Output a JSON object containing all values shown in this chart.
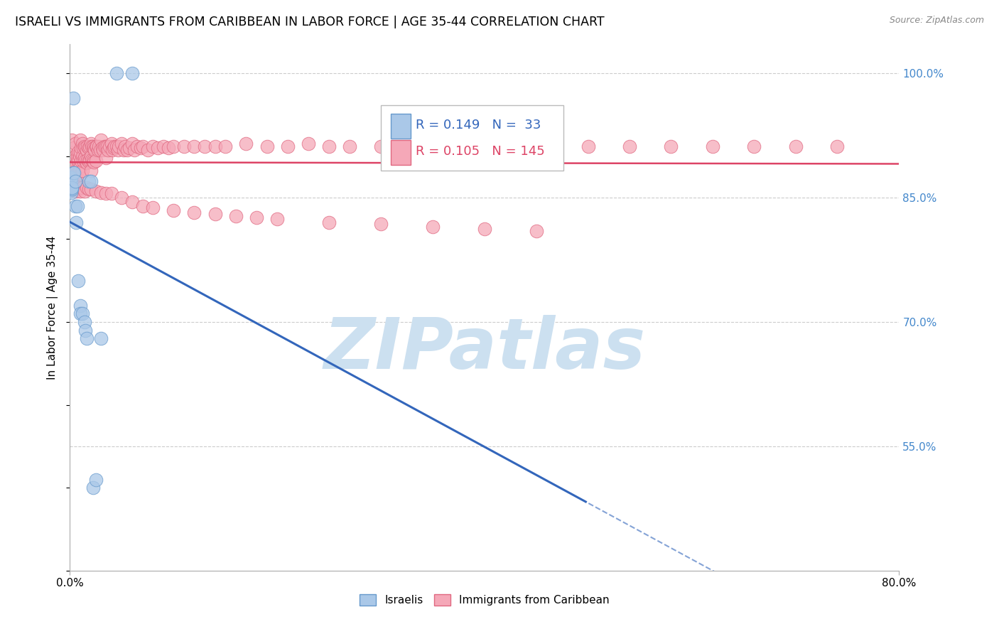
{
  "title": "ISRAELI VS IMMIGRANTS FROM CARIBBEAN IN LABOR FORCE | AGE 35-44 CORRELATION CHART",
  "source": "Source: ZipAtlas.com",
  "ylabel": "In Labor Force | Age 35-44",
  "x_min": 0.0,
  "x_max": 0.8,
  "y_min": 0.4,
  "y_max": 1.035,
  "y_ticks_right": [
    0.55,
    0.7,
    0.85,
    1.0
  ],
  "y_tick_labels_right": [
    "55.0%",
    "70.0%",
    "85.0%",
    "100.0%"
  ],
  "watermark": "ZIPatlas",
  "legend_r1": "R = 0.149",
  "legend_n1": "N =  33",
  "legend_r2": "R = 0.105",
  "legend_n2": "N = 145",
  "israeli_color": "#aac8e8",
  "caribbean_color": "#f5a8b8",
  "israeli_edge_color": "#6699cc",
  "caribbean_edge_color": "#e06880",
  "israeli_line_color": "#3366bb",
  "caribbean_line_color": "#dd4466",
  "background_color": "#ffffff",
  "grid_color": "#cccccc",
  "right_label_color": "#4488cc",
  "title_fontsize": 12.5,
  "label_fontsize": 11,
  "tick_fontsize": 11,
  "legend_fontsize": 13,
  "watermark_color": "#cce0f0",
  "watermark_fontsize": 72,
  "israeli_scatter_x": [
    0.0,
    0.0,
    0.0,
    0.0,
    0.0,
    0.001,
    0.001,
    0.001,
    0.001,
    0.001,
    0.002,
    0.002,
    0.003,
    0.003,
    0.004,
    0.005,
    0.005,
    0.006,
    0.007,
    0.008,
    0.01,
    0.01,
    0.012,
    0.014,
    0.015,
    0.016,
    0.018,
    0.02,
    0.022,
    0.025,
    0.03,
    0.045,
    0.06
  ],
  "israeli_scatter_y": [
    0.86,
    0.862,
    0.865,
    0.858,
    0.868,
    0.86,
    0.862,
    0.856,
    0.87,
    0.874,
    0.86,
    0.862,
    0.97,
    0.88,
    0.88,
    0.87,
    0.84,
    0.82,
    0.84,
    0.75,
    0.72,
    0.71,
    0.71,
    0.7,
    0.69,
    0.68,
    0.87,
    0.87,
    0.5,
    0.51,
    0.68,
    1.0,
    1.0
  ],
  "caribbean_scatter_x": [
    0.002,
    0.003,
    0.003,
    0.003,
    0.004,
    0.004,
    0.004,
    0.005,
    0.005,
    0.005,
    0.006,
    0.006,
    0.006,
    0.007,
    0.007,
    0.007,
    0.008,
    0.008,
    0.008,
    0.009,
    0.009,
    0.01,
    0.01,
    0.01,
    0.011,
    0.011,
    0.011,
    0.012,
    0.012,
    0.012,
    0.013,
    0.013,
    0.014,
    0.014,
    0.015,
    0.015,
    0.016,
    0.016,
    0.017,
    0.017,
    0.018,
    0.018,
    0.019,
    0.019,
    0.02,
    0.02,
    0.02,
    0.021,
    0.021,
    0.022,
    0.022,
    0.023,
    0.023,
    0.024,
    0.025,
    0.025,
    0.026,
    0.027,
    0.028,
    0.029,
    0.03,
    0.031,
    0.032,
    0.033,
    0.035,
    0.035,
    0.036,
    0.037,
    0.038,
    0.04,
    0.041,
    0.042,
    0.043,
    0.045,
    0.046,
    0.047,
    0.05,
    0.052,
    0.053,
    0.055,
    0.057,
    0.06,
    0.062,
    0.065,
    0.068,
    0.07,
    0.075,
    0.08,
    0.085,
    0.09,
    0.095,
    0.1,
    0.11,
    0.12,
    0.13,
    0.14,
    0.15,
    0.17,
    0.19,
    0.21,
    0.23,
    0.25,
    0.27,
    0.3,
    0.33,
    0.36,
    0.39,
    0.42,
    0.46,
    0.5,
    0.54,
    0.58,
    0.62,
    0.66,
    0.7,
    0.74,
    0.002,
    0.004,
    0.006,
    0.008,
    0.01,
    0.012,
    0.014,
    0.016,
    0.018,
    0.02,
    0.025,
    0.03,
    0.035,
    0.04,
    0.05,
    0.06,
    0.07,
    0.08,
    0.1,
    0.12,
    0.14,
    0.16,
    0.18,
    0.2,
    0.25,
    0.3,
    0.35,
    0.4,
    0.45
  ],
  "caribbean_scatter_y": [
    0.92,
    0.9,
    0.88,
    0.895,
    0.91,
    0.895,
    0.88,
    0.915,
    0.9,
    0.885,
    0.89,
    0.875,
    0.86,
    0.9,
    0.885,
    0.87,
    0.905,
    0.895,
    0.88,
    0.9,
    0.885,
    0.92,
    0.905,
    0.888,
    0.91,
    0.895,
    0.878,
    0.915,
    0.9,
    0.883,
    0.91,
    0.895,
    0.912,
    0.898,
    0.91,
    0.895,
    0.908,
    0.892,
    0.912,
    0.896,
    0.91,
    0.894,
    0.912,
    0.896,
    0.915,
    0.9,
    0.883,
    0.912,
    0.896,
    0.912,
    0.895,
    0.91,
    0.893,
    0.908,
    0.912,
    0.895,
    0.912,
    0.908,
    0.912,
    0.908,
    0.92,
    0.91,
    0.908,
    0.912,
    0.912,
    0.898,
    0.912,
    0.908,
    0.912,
    0.915,
    0.908,
    0.91,
    0.912,
    0.912,
    0.908,
    0.912,
    0.915,
    0.908,
    0.912,
    0.908,
    0.91,
    0.915,
    0.908,
    0.912,
    0.91,
    0.912,
    0.908,
    0.912,
    0.91,
    0.912,
    0.91,
    0.912,
    0.912,
    0.912,
    0.912,
    0.912,
    0.912,
    0.915,
    0.912,
    0.912,
    0.915,
    0.912,
    0.912,
    0.912,
    0.915,
    0.912,
    0.912,
    0.912,
    0.912,
    0.912,
    0.912,
    0.912,
    0.912,
    0.912,
    0.912,
    0.912,
    0.86,
    0.862,
    0.858,
    0.862,
    0.858,
    0.862,
    0.858,
    0.862,
    0.86,
    0.86,
    0.858,
    0.856,
    0.855,
    0.855,
    0.85,
    0.845,
    0.84,
    0.838,
    0.835,
    0.832,
    0.83,
    0.828,
    0.826,
    0.824,
    0.82,
    0.818,
    0.815,
    0.812,
    0.81
  ]
}
